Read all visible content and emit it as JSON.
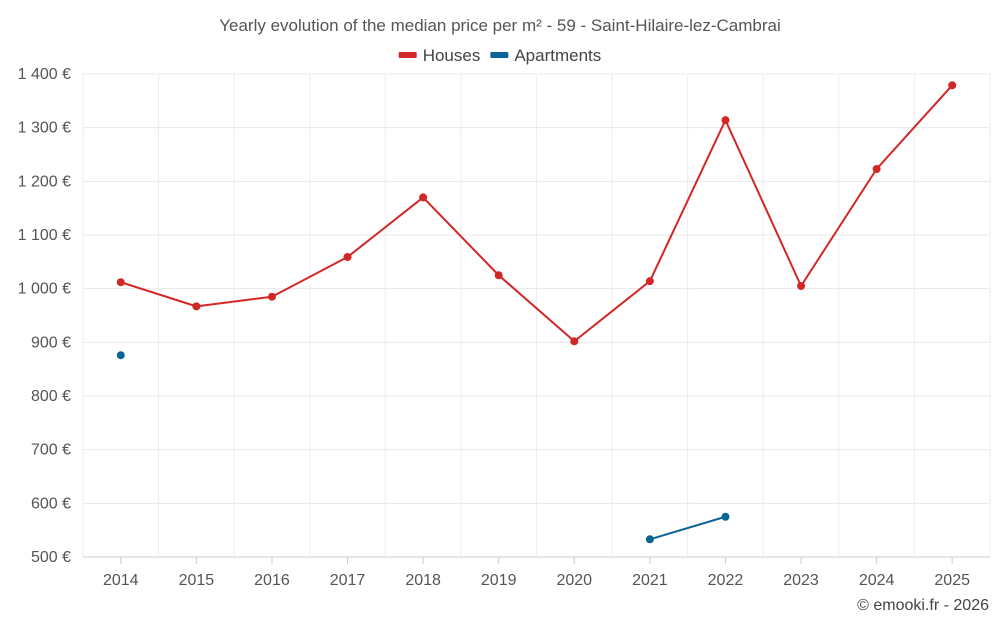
{
  "chart_data": {
    "type": "line",
    "title": "Yearly evolution of the median price per m² - 59 - Saint-Hilaire-lez-Cambrai",
    "xlabel": "",
    "ylabel": "",
    "categories": [
      "2014",
      "2015",
      "2016",
      "2017",
      "2018",
      "2019",
      "2020",
      "2021",
      "2022",
      "2023",
      "2024",
      "2025"
    ],
    "ylim": [
      500,
      1400
    ],
    "yticks": [
      500,
      600,
      700,
      800,
      900,
      1000,
      1100,
      1200,
      1300,
      1400
    ],
    "ytick_labels": [
      "500 €",
      "600 €",
      "700 €",
      "800 €",
      "900 €",
      "1 000 €",
      "1 100 €",
      "1 200 €",
      "1 300 €",
      "1 400 €"
    ],
    "grid": true,
    "legend_position": "top-center",
    "series": [
      {
        "name": "Houses",
        "color": "#d32626",
        "values": [
          1012,
          967,
          985,
          1059,
          1170,
          1025,
          902,
          1014,
          1314,
          1005,
          1223,
          1379
        ]
      },
      {
        "name": "Apartments",
        "color": "#0a6496",
        "values": [
          876,
          null,
          null,
          null,
          null,
          null,
          null,
          533,
          575,
          null,
          null,
          null
        ]
      }
    ],
    "credit": "© emooki.fr - 2026"
  }
}
